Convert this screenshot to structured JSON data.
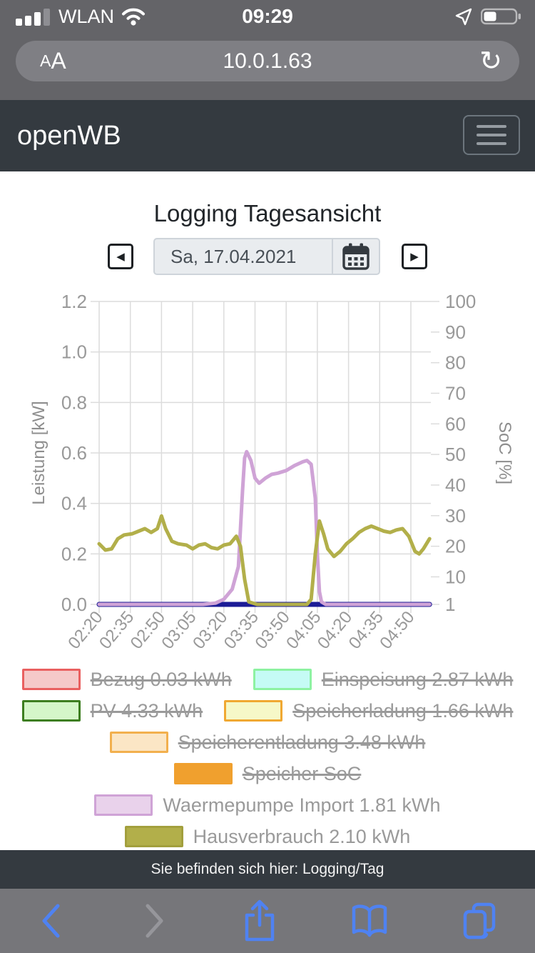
{
  "status_bar": {
    "carrier": "WLAN",
    "time": "09:29",
    "signal_bars_filled": 3,
    "signal_bars_total": 4,
    "battery_percent": 40
  },
  "url_bar": {
    "reader_small": "A",
    "reader_large": "A",
    "url": "10.0.1.63",
    "reload_glyph": "↻"
  },
  "navbar": {
    "brand": "openWB"
  },
  "main": {
    "title": "Logging Tagesansicht",
    "date_value": "Sa, 17.04.2021",
    "prev_glyph": "◀",
    "next_glyph": "▶"
  },
  "chart_data": {
    "type": "line",
    "x_ticks": [
      "02:20",
      "02:35",
      "02:50",
      "03:05",
      "03:20",
      "03:35",
      "03:50",
      "04:05",
      "04:20",
      "04:35",
      "04:50"
    ],
    "x_end": "04:59",
    "y_left": {
      "label": "Leistung [kW]",
      "min": 0,
      "max": 1.2,
      "ticks": [
        1.2,
        1.0,
        0.8,
        0.6,
        0.4,
        0.2,
        0.0
      ]
    },
    "y_right": {
      "label": "SoC [%]",
      "min": 1,
      "max": 100,
      "ticks": [
        100,
        90,
        80,
        70,
        60,
        50,
        40,
        30,
        20,
        10,
        1
      ]
    },
    "grid": true,
    "colors": {
      "grid": "#dcdcdc",
      "tick_text": "#999999",
      "axis_title": "#8e8e8e"
    },
    "series": [
      {
        "name": "Speicher SoC",
        "axis": "right",
        "color": "#1c1c96",
        "width": 7,
        "points": [
          [
            "02:20",
            1
          ],
          [
            "04:59",
            1
          ]
        ]
      },
      {
        "name": "Waermepumpe Import",
        "axis": "left",
        "color": "#cfa3d6",
        "width": 5,
        "points": [
          [
            "02:20",
            0
          ],
          [
            "03:10",
            0
          ],
          [
            "03:16",
            0.005
          ],
          [
            "03:20",
            0.02
          ],
          [
            "03:24",
            0.06
          ],
          [
            "03:27",
            0.15
          ],
          [
            "03:29",
            0.45
          ],
          [
            "03:30",
            0.58
          ],
          [
            "03:31",
            0.605
          ],
          [
            "03:33",
            0.57
          ],
          [
            "03:35",
            0.5
          ],
          [
            "03:37",
            0.48
          ],
          [
            "03:40",
            0.5
          ],
          [
            "03:43",
            0.515
          ],
          [
            "03:46",
            0.52
          ],
          [
            "03:50",
            0.53
          ],
          [
            "03:54",
            0.55
          ],
          [
            "03:58",
            0.565
          ],
          [
            "04:00",
            0.57
          ],
          [
            "04:02",
            0.555
          ],
          [
            "04:04",
            0.42
          ],
          [
            "04:05",
            0.2
          ],
          [
            "04:06",
            0.05
          ],
          [
            "04:07",
            0.01
          ],
          [
            "04:09",
            0
          ],
          [
            "04:59",
            0
          ]
        ]
      },
      {
        "name": "Hausverbrauch",
        "axis": "left",
        "color": "#b2af4a",
        "width": 5,
        "points": [
          [
            "02:20",
            0.24
          ],
          [
            "02:23",
            0.215
          ],
          [
            "02:26",
            0.22
          ],
          [
            "02:29",
            0.26
          ],
          [
            "02:32",
            0.275
          ],
          [
            "02:36",
            0.28
          ],
          [
            "02:39",
            0.29
          ],
          [
            "02:42",
            0.3
          ],
          [
            "02:45",
            0.285
          ],
          [
            "02:48",
            0.3
          ],
          [
            "02:50",
            0.35
          ],
          [
            "02:52",
            0.3
          ],
          [
            "02:55",
            0.25
          ],
          [
            "02:58",
            0.24
          ],
          [
            "03:02",
            0.235
          ],
          [
            "03:05",
            0.22
          ],
          [
            "03:08",
            0.235
          ],
          [
            "03:11",
            0.24
          ],
          [
            "03:14",
            0.225
          ],
          [
            "03:17",
            0.22
          ],
          [
            "03:20",
            0.235
          ],
          [
            "03:23",
            0.24
          ],
          [
            "03:26",
            0.27
          ],
          [
            "03:28",
            0.23
          ],
          [
            "03:30",
            0.1
          ],
          [
            "03:32",
            0.01
          ],
          [
            "03:36",
            0
          ],
          [
            "03:45",
            0
          ],
          [
            "03:55",
            0
          ],
          [
            "04:00",
            0
          ],
          [
            "04:02",
            0.02
          ],
          [
            "04:04",
            0.2
          ],
          [
            "04:06",
            0.33
          ],
          [
            "04:08",
            0.28
          ],
          [
            "04:10",
            0.22
          ],
          [
            "04:13",
            0.19
          ],
          [
            "04:16",
            0.21
          ],
          [
            "04:19",
            0.24
          ],
          [
            "04:22",
            0.26
          ],
          [
            "04:25",
            0.285
          ],
          [
            "04:28",
            0.3
          ],
          [
            "04:31",
            0.31
          ],
          [
            "04:34",
            0.3
          ],
          [
            "04:37",
            0.29
          ],
          [
            "04:40",
            0.285
          ],
          [
            "04:43",
            0.295
          ],
          [
            "04:46",
            0.3
          ],
          [
            "04:49",
            0.27
          ],
          [
            "04:52",
            0.21
          ],
          [
            "04:54",
            0.2
          ],
          [
            "04:56",
            0.22
          ],
          [
            "04:59",
            0.26
          ]
        ]
      }
    ]
  },
  "legend_rows": [
    [
      {
        "label": "Bezug 0.03 kWh",
        "fill": "#f5c9c9",
        "border": "#e96060",
        "struck": true
      },
      {
        "label": "Einspeisung 2.87 kWh",
        "fill": "#c5fbf5",
        "border": "#8df2a2",
        "struck": true
      }
    ],
    [
      {
        "label": "PV 4.33 kWh",
        "fill": "#d5f6c9",
        "border": "#3d7e20",
        "struck": true
      },
      {
        "label": "Speicherladung 1.66 kWh",
        "fill": "#f6f8c8",
        "border": "#f0a832",
        "struck": true
      }
    ],
    [
      {
        "label": "Speicherentladung 3.48 kWh",
        "fill": "#fbe6c5",
        "border": "#f2b04e",
        "struck": true
      }
    ],
    [
      {
        "label": "Speicher SoC",
        "fill": "#f0a02e",
        "border": "#f0a02e",
        "struck": true
      }
    ],
    [
      {
        "label": "Waermepumpe Import 1.81 kWh",
        "fill": "#e9d2eb",
        "border": "#cfa3d6",
        "struck": false
      }
    ],
    [
      {
        "label": "Hausverbrauch 2.10 kWh",
        "fill": "#b2af4a",
        "border": "#a29f3d",
        "struck": false
      }
    ]
  ],
  "footer": {
    "breadcrumb": "Sie befinden sich hier: Logging/Tag"
  }
}
